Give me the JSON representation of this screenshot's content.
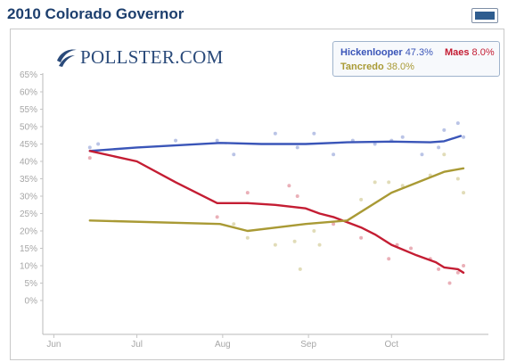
{
  "header": {
    "title": "2010 Colorado Governor"
  },
  "logo": {
    "text": "POLLSTER.COM"
  },
  "legend": {
    "entries": [
      {
        "name": "Hickenlooper",
        "value": "47.3%",
        "color": "#3a55b8"
      },
      {
        "name": "Maes",
        "value": "8.0%",
        "color": "#c41d33"
      },
      {
        "name": "Tancredo",
        "value": "38.0%",
        "color": "#a99a35"
      }
    ]
  },
  "chart_data": {
    "type": "line",
    "title": "",
    "xlabel": "",
    "ylabel": "",
    "ylim": [
      0,
      65
    ],
    "yticks": [
      "0%",
      "5%",
      "10%",
      "15%",
      "20%",
      "25%",
      "30%",
      "35%",
      "40%",
      "45%",
      "50%",
      "55%",
      "60%",
      "65%"
    ],
    "xticks": [
      "Jun",
      "Jul",
      "Aug",
      "Sep",
      "Oct"
    ],
    "x_domain": [
      "2010-05-28",
      "2010-11-05"
    ],
    "tick_dates": [
      "2010-06-01",
      "2010-07-01",
      "2010-08-01",
      "2010-09-01",
      "2010-10-01"
    ],
    "grid": true,
    "series": [
      {
        "name": "Hickenlooper",
        "color": "#3a55b8",
        "trend": [
          [
            "2010-06-14",
            43
          ],
          [
            "2010-07-01",
            44
          ],
          [
            "2010-07-31",
            45.3
          ],
          [
            "2010-08-15",
            45
          ],
          [
            "2010-08-31",
            45
          ],
          [
            "2010-09-15",
            45.5
          ],
          [
            "2010-10-01",
            45.7
          ],
          [
            "2010-10-15",
            45.5
          ],
          [
            "2010-10-20",
            45.8
          ],
          [
            "2010-10-26",
            47.3
          ]
        ],
        "polls": [
          [
            "2010-06-14",
            44
          ],
          [
            "2010-06-17",
            45
          ],
          [
            "2010-07-15",
            46
          ],
          [
            "2010-07-30",
            46
          ],
          [
            "2010-08-05",
            42
          ],
          [
            "2010-08-20",
            48
          ],
          [
            "2010-08-28",
            44
          ],
          [
            "2010-09-03",
            48
          ],
          [
            "2010-09-10",
            42
          ],
          [
            "2010-09-17",
            46
          ],
          [
            "2010-09-25",
            45
          ],
          [
            "2010-10-01",
            46
          ],
          [
            "2010-10-05",
            47
          ],
          [
            "2010-10-12",
            42
          ],
          [
            "2010-10-18",
            44
          ],
          [
            "2010-10-20",
            49
          ],
          [
            "2010-10-25",
            51
          ],
          [
            "2010-10-27",
            47
          ]
        ]
      },
      {
        "name": "Maes",
        "color": "#c41d33",
        "trend": [
          [
            "2010-06-14",
            43
          ],
          [
            "2010-07-01",
            40
          ],
          [
            "2010-07-15",
            34
          ],
          [
            "2010-07-30",
            28
          ],
          [
            "2010-08-10",
            28
          ],
          [
            "2010-08-20",
            27.5
          ],
          [
            "2010-08-31",
            26.5
          ],
          [
            "2010-09-05",
            25
          ],
          [
            "2010-09-10",
            24
          ],
          [
            "2010-09-15",
            22.5
          ],
          [
            "2010-09-20",
            21
          ],
          [
            "2010-09-25",
            19
          ],
          [
            "2010-10-01",
            16
          ],
          [
            "2010-10-10",
            13
          ],
          [
            "2010-10-17",
            11
          ],
          [
            "2010-10-20",
            9.5
          ],
          [
            "2010-10-25",
            9
          ],
          [
            "2010-10-27",
            8
          ]
        ],
        "polls": [
          [
            "2010-06-14",
            41
          ],
          [
            "2010-07-30",
            24
          ],
          [
            "2010-08-10",
            31
          ],
          [
            "2010-08-25",
            33
          ],
          [
            "2010-08-28",
            30
          ],
          [
            "2010-09-10",
            22
          ],
          [
            "2010-09-20",
            18
          ],
          [
            "2010-09-30",
            12
          ],
          [
            "2010-10-03",
            16
          ],
          [
            "2010-10-08",
            15
          ],
          [
            "2010-10-15",
            12
          ],
          [
            "2010-10-18",
            9
          ],
          [
            "2010-10-22",
            5
          ],
          [
            "2010-10-25",
            8
          ],
          [
            "2010-10-27",
            10
          ]
        ]
      },
      {
        "name": "Tancredo",
        "color": "#a99a35",
        "trend": [
          [
            "2010-06-14",
            23
          ],
          [
            "2010-07-31",
            22
          ],
          [
            "2010-08-10",
            20
          ],
          [
            "2010-08-31",
            22
          ],
          [
            "2010-09-15",
            23
          ],
          [
            "2010-10-01",
            31
          ],
          [
            "2010-10-20",
            37
          ],
          [
            "2010-10-27",
            38
          ]
        ],
        "polls": [
          [
            "2010-08-05",
            22
          ],
          [
            "2010-08-10",
            18
          ],
          [
            "2010-08-20",
            16
          ],
          [
            "2010-08-27",
            17
          ],
          [
            "2010-08-29",
            9
          ],
          [
            "2010-09-03",
            20
          ],
          [
            "2010-09-05",
            16
          ],
          [
            "2010-09-20",
            29
          ],
          [
            "2010-09-25",
            34
          ],
          [
            "2010-09-30",
            34
          ],
          [
            "2010-10-05",
            33
          ],
          [
            "2010-10-15",
            36
          ],
          [
            "2010-10-20",
            42
          ],
          [
            "2010-10-25",
            35
          ],
          [
            "2010-10-27",
            31
          ]
        ]
      }
    ]
  }
}
